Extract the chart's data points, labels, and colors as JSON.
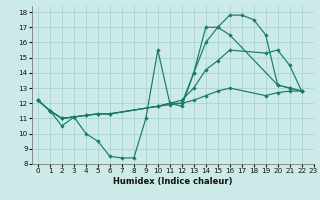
{
  "bg_color": "#cceae7",
  "grid_color": "#aad4d0",
  "line_color": "#1a7a6e",
  "xlabel": "Humidex (Indice chaleur)",
  "xlim": [
    -0.5,
    23
  ],
  "ylim": [
    8,
    18.4
  ],
  "xticks": [
    0,
    1,
    2,
    3,
    4,
    5,
    6,
    7,
    8,
    9,
    10,
    11,
    12,
    13,
    14,
    15,
    16,
    17,
    18,
    19,
    20,
    21,
    22,
    23
  ],
  "yticks": [
    8,
    9,
    10,
    11,
    12,
    13,
    14,
    15,
    16,
    17,
    18
  ],
  "series": [
    {
      "x": [
        0,
        1,
        2,
        3,
        4,
        5,
        6,
        7,
        8,
        9,
        10,
        11,
        12,
        13,
        14,
        15,
        16,
        17,
        18,
        19,
        20,
        21,
        22
      ],
      "y": [
        12.2,
        11.5,
        10.5,
        11.1,
        10.0,
        9.5,
        8.5,
        8.4,
        8.4,
        11.0,
        15.5,
        12.0,
        11.8,
        14.0,
        17.0,
        17.0,
        17.8,
        17.8,
        17.5,
        16.5,
        13.2,
        13.0,
        12.8
      ]
    },
    {
      "x": [
        0,
        1,
        2,
        3,
        4,
        5,
        6,
        10,
        11,
        12,
        13,
        14,
        15,
        16,
        20,
        21,
        22
      ],
      "y": [
        12.2,
        11.5,
        11.0,
        11.1,
        11.2,
        11.3,
        11.3,
        11.8,
        12.0,
        12.0,
        14.0,
        16.0,
        17.0,
        16.5,
        13.2,
        13.0,
        12.8
      ]
    },
    {
      "x": [
        0,
        1,
        2,
        3,
        4,
        5,
        6,
        10,
        11,
        12,
        13,
        14,
        15,
        16,
        19,
        20,
        21,
        22
      ],
      "y": [
        12.2,
        11.5,
        11.0,
        11.1,
        11.2,
        11.3,
        11.3,
        11.8,
        12.0,
        12.2,
        13.0,
        14.2,
        14.8,
        15.5,
        15.3,
        15.5,
        14.5,
        12.8
      ]
    },
    {
      "x": [
        0,
        1,
        2,
        3,
        4,
        5,
        6,
        10,
        11,
        12,
        13,
        14,
        15,
        16,
        19,
        20,
        21,
        22
      ],
      "y": [
        12.2,
        11.5,
        11.0,
        11.1,
        11.2,
        11.3,
        11.3,
        11.8,
        11.9,
        12.0,
        12.2,
        12.5,
        12.8,
        13.0,
        12.5,
        12.7,
        12.8,
        12.8
      ]
    }
  ]
}
